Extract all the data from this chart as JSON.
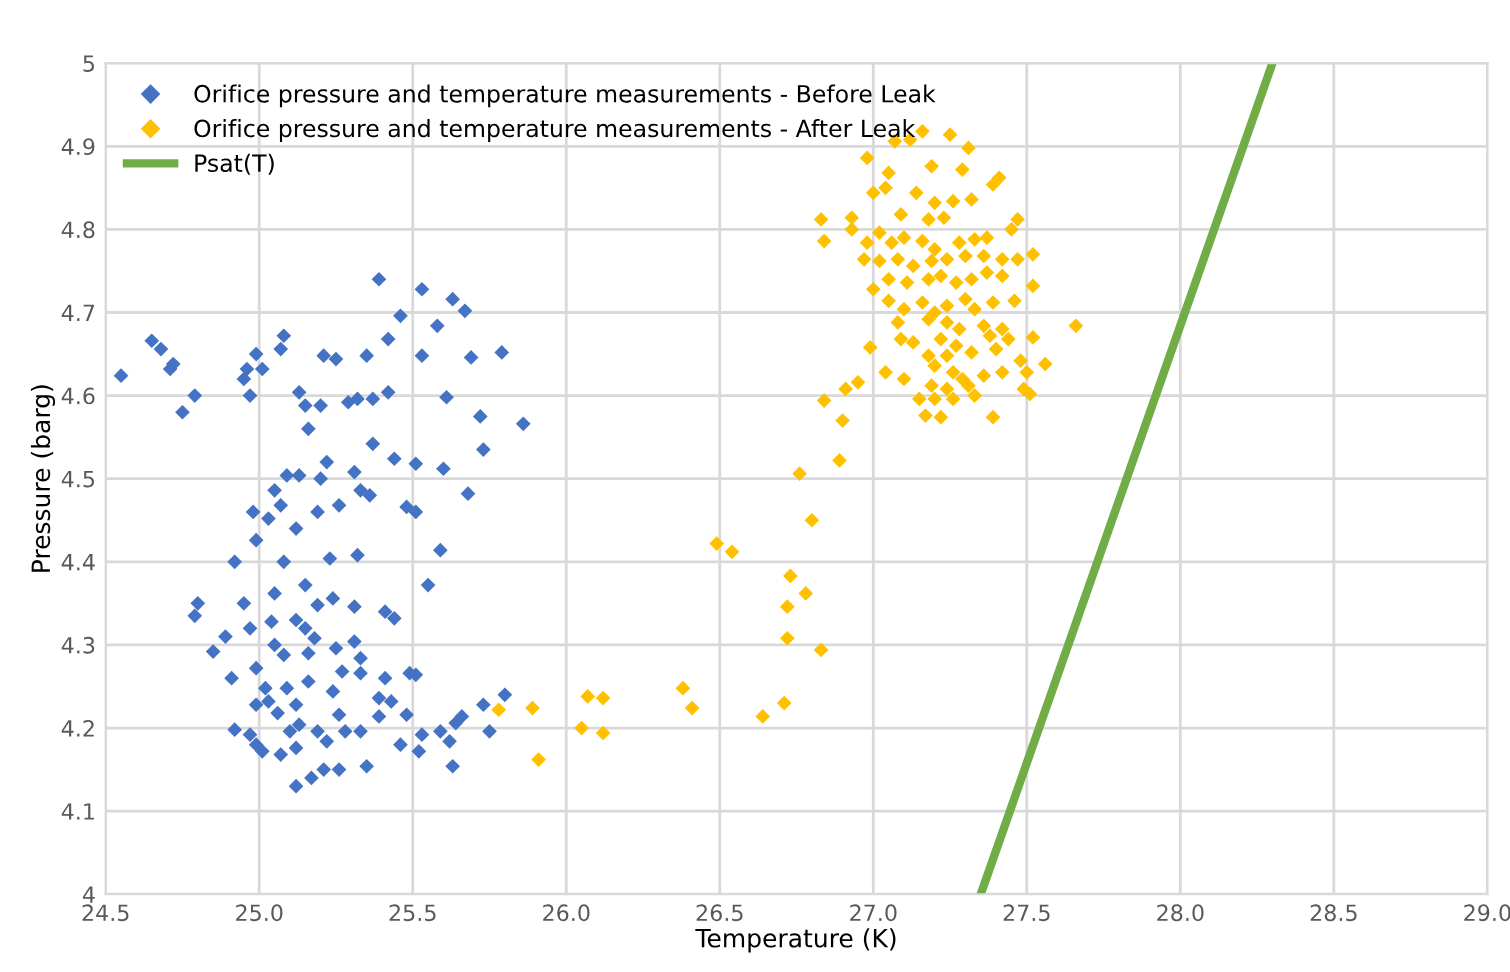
{
  "chart_data": {
    "type": "scatter",
    "xlabel": "Temperature (K)",
    "ylabel": "Pressure (barg)",
    "xlim": [
      24.5,
      29.0
    ],
    "xticks": [
      {
        "value": 24.5,
        "label": "24.5"
      },
      {
        "value": 25.0,
        "label": "25.0"
      },
      {
        "value": 25.5,
        "label": "25.5"
      },
      {
        "value": 26.0,
        "label": "26.0"
      },
      {
        "value": 26.5,
        "label": "26.5"
      },
      {
        "value": 27.0,
        "label": "27.0"
      },
      {
        "value": 27.5,
        "label": "27.5"
      },
      {
        "value": 28.0,
        "label": "28.0"
      },
      {
        "value": 28.5,
        "label": "28.5"
      },
      {
        "value": 29.0,
        "label": "29.0"
      }
    ],
    "ylim": [
      4,
      5
    ],
    "yticks": [
      4,
      4.1,
      4.2,
      4.3,
      4.4,
      4.5,
      4.6,
      4.7,
      4.8,
      4.9,
      5
    ],
    "grid": true,
    "legend": "top left",
    "marker": "diamond",
    "series": [
      {
        "name": "Orifice pressure and temperature measurements - Before Leak",
        "color": "#4472c4",
        "x": [
          24.55,
          24.65,
          24.68,
          24.71,
          24.72,
          24.75,
          24.79,
          24.8,
          24.79,
          24.85,
          24.89,
          24.91,
          24.92,
          24.92,
          24.95,
          24.95,
          24.96,
          24.97,
          24.99,
          25.01,
          25.07,
          25.08,
          24.98,
          24.99,
          25.03,
          25.05,
          25.09,
          25.07,
          25.13,
          25.13,
          25.15,
          25.16,
          25.2,
          25.21,
          25.25,
          25.22,
          25.29,
          25.32,
          25.35,
          25.39,
          25.37,
          25.42,
          25.42,
          25.46,
          25.53,
          25.53,
          25.58,
          25.63,
          25.67,
          25.69,
          25.79,
          25.86,
          25.72,
          25.73,
          25.68,
          25.61,
          25.6,
          25.51,
          25.51,
          25.48,
          25.44,
          25.37,
          25.36,
          25.33,
          25.31,
          25.26,
          25.2,
          25.19,
          25.12,
          25.08,
          25.15,
          25.23,
          25.32,
          25.59,
          25.55,
          25.44,
          25.41,
          25.31,
          25.24,
          25.19,
          25.15,
          25.12,
          25.04,
          24.97,
          25.05,
          25.05,
          25.08,
          25.16,
          25.18,
          25.25,
          25.31,
          25.33,
          25.27,
          25.33,
          25.24,
          25.16,
          25.09,
          25.02,
          24.99,
          24.99,
          25.03,
          25.06,
          25.12,
          25.13,
          25.1,
          24.99,
          24.97,
          25.01,
          25.07,
          25.12,
          25.12,
          25.17,
          25.21,
          25.26,
          25.19,
          25.22,
          25.28,
          25.26,
          25.33,
          25.35,
          25.39,
          25.39,
          25.43,
          25.41,
          25.46,
          25.48,
          25.49,
          25.51,
          25.52,
          25.53,
          25.59,
          25.62,
          25.63,
          25.64,
          25.66,
          25.73,
          25.75,
          25.8
        ],
        "values": [
          4.624,
          4.666,
          4.656,
          4.632,
          4.638,
          4.58,
          4.6,
          4.35,
          4.335,
          4.292,
          4.31,
          4.26,
          4.4,
          4.198,
          4.35,
          4.62,
          4.632,
          4.6,
          4.65,
          4.632,
          4.656,
          4.672,
          4.46,
          4.426,
          4.452,
          4.486,
          4.504,
          4.468,
          4.504,
          4.604,
          4.588,
          4.56,
          4.588,
          4.648,
          4.644,
          4.52,
          4.592,
          4.596,
          4.648,
          4.74,
          4.596,
          4.604,
          4.668,
          4.696,
          4.728,
          4.648,
          4.684,
          4.716,
          4.702,
          4.646,
          4.652,
          4.566,
          4.575,
          4.535,
          4.482,
          4.598,
          4.512,
          4.518,
          4.46,
          4.466,
          4.524,
          4.542,
          4.48,
          4.486,
          4.508,
          4.468,
          4.5,
          4.46,
          4.44,
          4.4,
          4.372,
          4.404,
          4.408,
          4.414,
          4.372,
          4.332,
          4.34,
          4.346,
          4.356,
          4.348,
          4.32,
          4.33,
          4.328,
          4.32,
          4.362,
          4.3,
          4.288,
          4.29,
          4.308,
          4.296,
          4.304,
          4.284,
          4.268,
          4.266,
          4.244,
          4.256,
          4.248,
          4.248,
          4.272,
          4.228,
          4.232,
          4.218,
          4.228,
          4.204,
          4.196,
          4.18,
          4.192,
          4.172,
          4.168,
          4.176,
          4.13,
          4.14,
          4.15,
          4.15,
          4.196,
          4.184,
          4.196,
          4.216,
          4.196,
          4.154,
          4.236,
          4.214,
          4.232,
          4.26,
          4.18,
          4.216,
          4.266,
          4.264,
          4.172,
          4.192,
          4.196,
          4.184,
          4.154,
          4.206,
          4.214,
          4.228,
          4.196,
          4.24
        ]
      },
      {
        "name": "Orifice pressure and temperature measurements - After Leak",
        "color": "#ffc000",
        "x": [
          25.78,
          25.89,
          25.91,
          26.05,
          26.07,
          26.12,
          26.12,
          26.38,
          26.41,
          26.64,
          26.71,
          26.49,
          26.54,
          26.73,
          26.78,
          26.72,
          26.72,
          26.83,
          26.8,
          26.76,
          26.89,
          26.9,
          26.84,
          26.91,
          26.95,
          26.84,
          26.83,
          26.93,
          26.93,
          26.98,
          27.0,
          27.04,
          27.05,
          27.07,
          27.12,
          27.16,
          27.25,
          27.31,
          27.19,
          27.29,
          27.39,
          27.41,
          27.14,
          27.2,
          27.26,
          27.32,
          27.09,
          27.18,
          27.23,
          27.45,
          27.47,
          26.98,
          27.02,
          27.06,
          27.1,
          27.16,
          27.2,
          27.28,
          27.33,
          27.37,
          26.97,
          27.02,
          27.08,
          27.13,
          27.19,
          27.24,
          27.3,
          27.36,
          27.42,
          27.47,
          27.52,
          27.0,
          27.05,
          27.11,
          27.18,
          27.22,
          27.27,
          27.32,
          27.37,
          27.42,
          27.52,
          27.05,
          27.1,
          27.16,
          27.2,
          27.24,
          27.3,
          27.33,
          27.39,
          27.46,
          27.08,
          27.18,
          27.24,
          27.28,
          27.36,
          27.42,
          27.66,
          27.09,
          27.13,
          27.22,
          27.27,
          27.38,
          27.44,
          27.52,
          26.99,
          27.18,
          27.24,
          27.32,
          27.4,
          27.48,
          27.56,
          27.04,
          27.1,
          27.2,
          27.26,
          27.29,
          27.36,
          27.42,
          27.5,
          27.19,
          27.24,
          27.31,
          27.49,
          27.51,
          27.15,
          27.2,
          27.26,
          27.33,
          27.17,
          27.22,
          27.39
        ],
        "values": [
          4.222,
          4.224,
          4.162,
          4.2,
          4.238,
          4.236,
          4.194,
          4.248,
          4.224,
          4.214,
          4.23,
          4.422,
          4.412,
          4.383,
          4.362,
          4.346,
          4.308,
          4.294,
          4.45,
          4.506,
          4.522,
          4.57,
          4.594,
          4.608,
          4.616,
          4.786,
          4.812,
          4.814,
          4.8,
          4.886,
          4.844,
          4.85,
          4.868,
          4.906,
          4.908,
          4.918,
          4.914,
          4.898,
          4.876,
          4.872,
          4.854,
          4.862,
          4.844,
          4.832,
          4.834,
          4.836,
          4.818,
          4.812,
          4.814,
          4.8,
          4.812,
          4.784,
          4.796,
          4.784,
          4.79,
          4.786,
          4.776,
          4.784,
          4.788,
          4.79,
          4.764,
          4.762,
          4.764,
          4.756,
          4.762,
          4.764,
          4.768,
          4.768,
          4.764,
          4.764,
          4.77,
          4.728,
          4.74,
          4.736,
          4.74,
          4.744,
          4.736,
          4.74,
          4.748,
          4.744,
          4.732,
          4.714,
          4.704,
          4.712,
          4.7,
          4.708,
          4.716,
          4.704,
          4.712,
          4.714,
          4.688,
          4.692,
          4.688,
          4.68,
          4.684,
          4.68,
          4.684,
          4.668,
          4.664,
          4.668,
          4.66,
          4.672,
          4.668,
          4.67,
          4.658,
          4.648,
          4.648,
          4.652,
          4.656,
          4.642,
          4.638,
          4.628,
          4.62,
          4.636,
          4.628,
          4.62,
          4.624,
          4.628,
          4.628,
          4.612,
          4.608,
          4.612,
          4.608,
          4.602,
          4.596,
          4.596,
          4.596,
          4.6,
          4.576,
          4.574,
          4.574
        ]
      },
      {
        "name": "Psat(T)",
        "color": "#70ad47",
        "type": "line",
        "marker": "none",
        "line_style": "solid",
        "x": [
          27.35,
          28.3
        ],
        "values": [
          4,
          5
        ]
      }
    ]
  }
}
